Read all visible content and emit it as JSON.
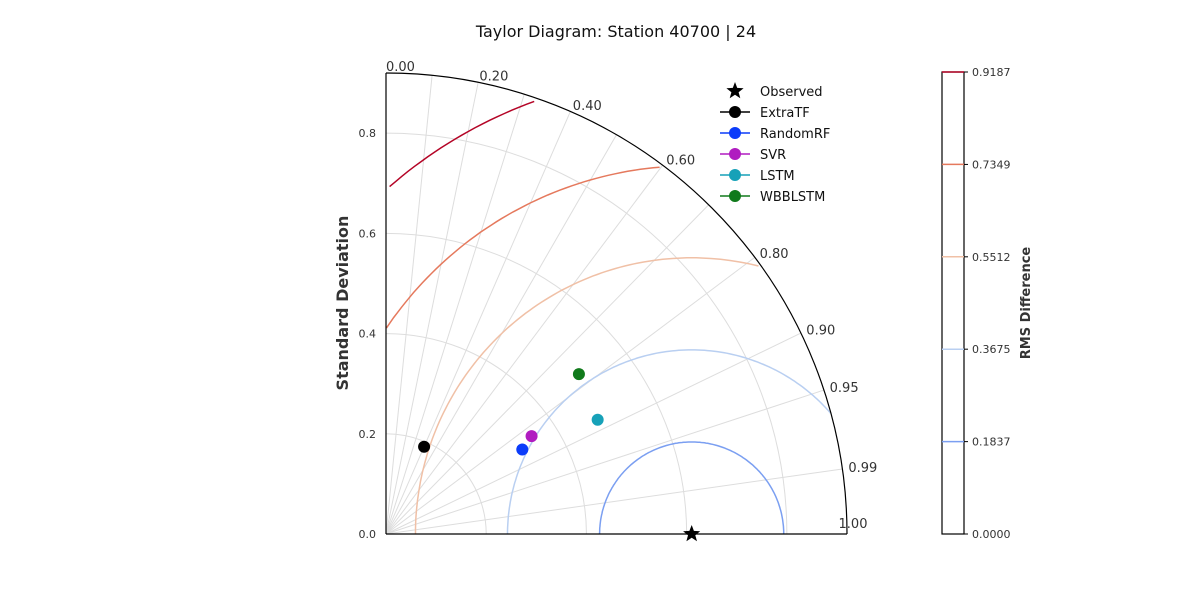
{
  "chart_data": {
    "type": "scatter",
    "subtype": "taylor-diagram",
    "title": "Taylor Diagram: Station 40700 | 24",
    "ylabel": "Standard Deviation",
    "colorbar_label": "RMS Difference",
    "std_range": [
      0,
      0.92
    ],
    "std_ticks": [
      "0.0",
      "0.2",
      "0.4",
      "0.6",
      "0.8"
    ],
    "correlation_ticks": [
      "1.00",
      "0.99",
      "0.95",
      "0.90",
      "0.80",
      "0.60",
      "0.40",
      "0.20",
      "0.00"
    ],
    "grid": true,
    "legend_position": "top-right",
    "reference": {
      "name": "Observed",
      "std": 0.61,
      "correlation": 1.0,
      "marker": "star",
      "color": "#000000"
    },
    "series": [
      {
        "name": "ExtraTF",
        "std": 0.19,
        "correlation": 0.4,
        "color": "#000000"
      },
      {
        "name": "RandomRF",
        "std": 0.32,
        "correlation": 0.85,
        "color": "#0b3cfa"
      },
      {
        "name": "SVR",
        "std": 0.35,
        "correlation": 0.83,
        "color": "#b01cc0"
      },
      {
        "name": "LSTM",
        "std": 0.48,
        "correlation": 0.88,
        "color": "#17a1b8"
      },
      {
        "name": "WBBLSTM",
        "std": 0.5,
        "correlation": 0.77,
        "color": "#107a1b"
      }
    ],
    "rms_contours": [
      {
        "value": 0.1837,
        "color": "#7b9ff1"
      },
      {
        "value": 0.3675,
        "color": "#b9cff1"
      },
      {
        "value": 0.5512,
        "color": "#f0c0a6"
      },
      {
        "value": 0.7349,
        "color": "#e5795d"
      },
      {
        "value": 0.9187,
        "color": "#b40426"
      }
    ],
    "colorbar_ticks": [
      "0.0000",
      "0.1837",
      "0.3675",
      "0.5512",
      "0.7349",
      "0.9187"
    ],
    "colorbar_range": [
      0,
      0.9187
    ]
  }
}
